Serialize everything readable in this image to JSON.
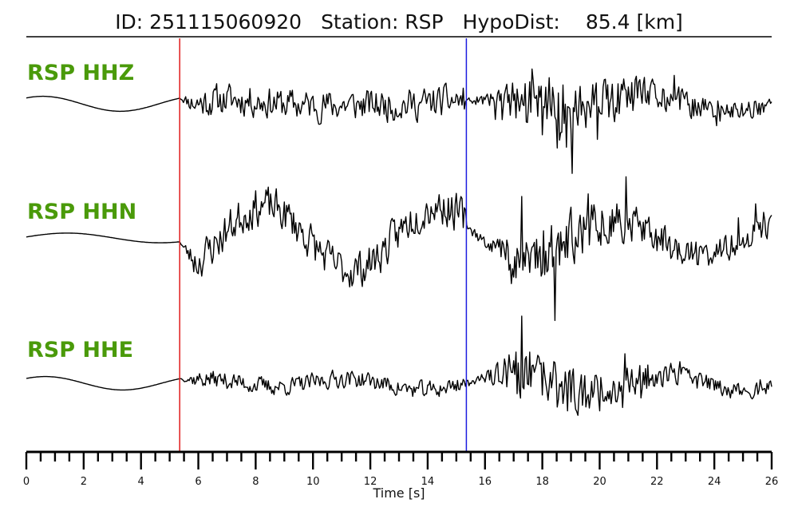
{
  "header": {
    "id_text": "ID: 251115060920",
    "station_text": "Station: RSP",
    "dist_text": "HypoDist:",
    "dist_value_text": "85.4 [km]"
  },
  "chart_data": {
    "type": "line",
    "title": "ID: 251115060920   Station: RSP   HypoDist:    85.4 [km]",
    "xlabel": "Time [s]",
    "xlim": [
      0,
      26
    ],
    "x_tick_labels": [
      "0",
      "2",
      "4",
      "6",
      "8",
      "10",
      "12",
      "14",
      "16",
      "18",
      "20",
      "22",
      "24",
      "26"
    ],
    "minor_tick_step": 0.5,
    "label_color": "#4a9a0a",
    "picks": [
      {
        "phase": "P",
        "time": 5.35,
        "color": "#e01b1b"
      },
      {
        "phase": "S",
        "time": 15.35,
        "color": "#1b1be0"
      }
    ],
    "series": [
      {
        "name": "RSP HHZ",
        "seed": 11,
        "pre": {
          "amp": 0.12,
          "period": 5.4,
          "phase": 0.9
        },
        "segments": [
          {
            "start": 5.35,
            "end": 15.35,
            "amp": 0.32,
            "slow_amp": 0.14,
            "slow_period": 6.0
          },
          {
            "start": 15.35,
            "end": 26.0,
            "amp": 1.0,
            "peak": 17.8,
            "decay": 5.5,
            "floor": 0.3
          }
        ]
      },
      {
        "name": "RSP HHN",
        "seed": 23,
        "pre": {
          "amp": 0.08,
          "period": 6.5,
          "phase": 0.2
        },
        "segments": [
          {
            "start": 5.35,
            "end": 15.35,
            "amp": 0.4,
            "slow_amp": 0.45,
            "slow_period": 6.0
          },
          {
            "start": 15.35,
            "end": 26.0,
            "amp": 1.0,
            "peak": 17.5,
            "decay": 6.0,
            "floor": 0.35
          }
        ]
      },
      {
        "name": "RSP HHE",
        "seed": 37,
        "pre": {
          "amp": 0.12,
          "period": 5.4,
          "phase": 0.8
        },
        "segments": [
          {
            "start": 5.35,
            "end": 15.35,
            "amp": 0.2,
            "slow_amp": 0.06,
            "slow_period": 7.0
          },
          {
            "start": 15.35,
            "end": 26.0,
            "amp": 1.0,
            "peak": 17.3,
            "decay": 5.0,
            "floor": 0.25
          }
        ]
      }
    ]
  }
}
